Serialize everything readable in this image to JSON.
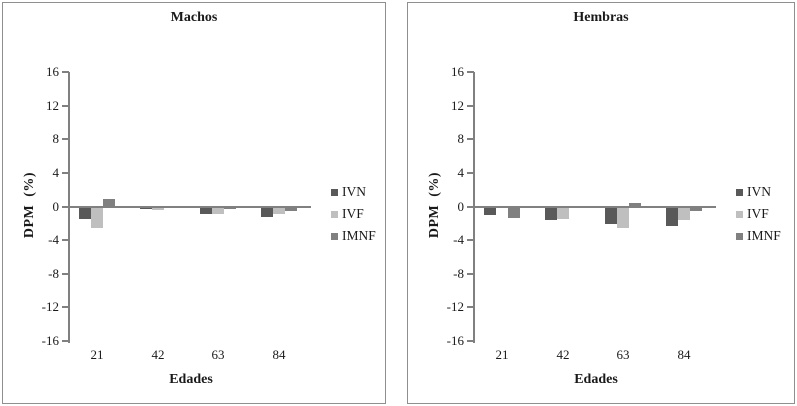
{
  "figure": {
    "background": "#ffffff",
    "panel_border_color": "#8f8f8f",
    "axis_color": "#808080",
    "text_color": "#1a1a1a"
  },
  "chart_data": [
    {
      "type": "bar",
      "title": "Machos",
      "xlabel": "Edades",
      "ylabel": "DPM  (%)",
      "categories": [
        "21",
        "42",
        "63",
        "84"
      ],
      "series": [
        {
          "name": "IVN",
          "color": "#595959",
          "values": [
            -1.5,
            -0.3,
            -0.9,
            -1.3
          ]
        },
        {
          "name": "IVF",
          "color": "#bfbfbf",
          "values": [
            -2.6,
            -0.4,
            -0.9,
            -0.9
          ]
        },
        {
          "name": "IMNF",
          "color": "#808080",
          "values": [
            0.9,
            -0.2,
            -0.3,
            -0.5
          ]
        }
      ],
      "ylim": [
        -16,
        16
      ],
      "yticks": [
        16,
        12,
        8,
        4,
        0,
        -4,
        -8,
        -12,
        -16
      ],
      "grid": false,
      "legend_position": "right"
    },
    {
      "type": "bar",
      "title": "Hembras",
      "xlabel": "Edades",
      "ylabel": "DPM  (%)",
      "categories": [
        "21",
        "42",
        "63",
        "84"
      ],
      "series": [
        {
          "name": "IVN",
          "color": "#595959",
          "values": [
            -1.0,
            -1.6,
            -2.1,
            -2.3
          ]
        },
        {
          "name": "IVF",
          "color": "#bfbfbf",
          "values": [
            -0.2,
            -1.5,
            -2.5,
            -1.6
          ]
        },
        {
          "name": "IMNF",
          "color": "#808080",
          "values": [
            -1.4,
            -0.1,
            0.4,
            -0.5
          ]
        }
      ],
      "ylim": [
        -16,
        16
      ],
      "yticks": [
        16,
        12,
        8,
        4,
        0,
        -4,
        -8,
        -12,
        -16
      ],
      "grid": false,
      "legend_position": "right"
    }
  ]
}
